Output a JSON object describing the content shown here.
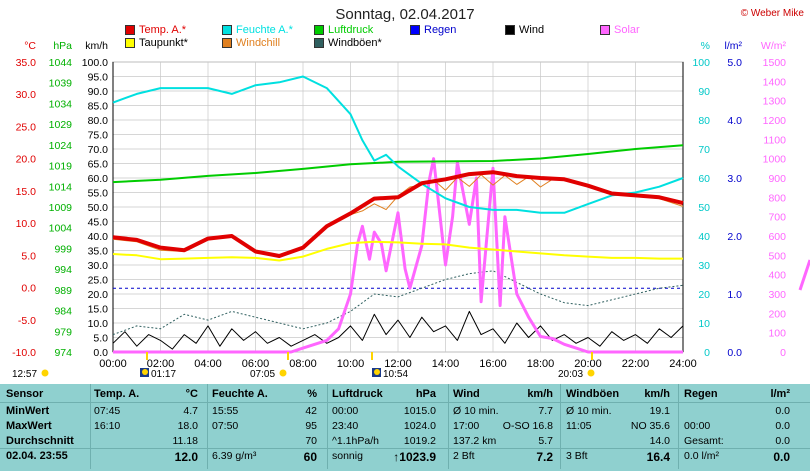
{
  "title": "Sonntag, 02.04.2017",
  "credit": "© Weber Mike",
  "legend": [
    {
      "label": "Temp. A.*",
      "color": "#e00000"
    },
    {
      "label": "Feuchte A.*",
      "color": "#00e0e0"
    },
    {
      "label": "Luftdruck",
      "color": "#00cc00"
    },
    {
      "label": "Regen",
      "color": "#0000ff"
    },
    {
      "label": "Wind",
      "color": "#000000"
    },
    {
      "label": "Solar",
      "color": "#ff66ff"
    },
    {
      "label": "Taupunkt*",
      "color": "#ffff00"
    },
    {
      "label": "Windchill",
      "color": "#e08020"
    },
    {
      "label": "Windböen*",
      "color": "#306060"
    }
  ],
  "units": {
    "temp": "°C",
    "press": "hPa",
    "wind": "km/h",
    "hum": "%",
    "rain": "l/m²",
    "solar": "W/m²"
  },
  "chart_data": {
    "type": "line",
    "x_ticks": [
      "00:00",
      "02:00",
      "04:00",
      "06:00",
      "08:00",
      "10:00",
      "12:00",
      "14:00",
      "16:00",
      "18:00",
      "20:00",
      "22:00",
      "24:00"
    ],
    "axes": {
      "temp": {
        "label": "°C",
        "ticks": [
          "35.0",
          "30.0",
          "25.0",
          "20.0",
          "15.0",
          "10.0",
          "5.0",
          "0.0",
          "-5.0",
          "-10.0"
        ],
        "range": [
          -10,
          35
        ]
      },
      "press": {
        "label": "hPa",
        "ticks": [
          "1044",
          "1039",
          "1034",
          "1029",
          "1024",
          "1019",
          "1014",
          "1009",
          "1004",
          "999",
          "994",
          "989",
          "984",
          "979",
          "974"
        ],
        "range": [
          974,
          1044
        ]
      },
      "wind": {
        "label": "km/h",
        "ticks": [
          "100.0",
          "95.0",
          "90.0",
          "85.0",
          "80.0",
          "75.0",
          "70.0",
          "65.0",
          "60.0",
          "55.0",
          "50.0",
          "45.0",
          "40.0",
          "35.0",
          "30.0",
          "25.0",
          "20.0",
          "15.0",
          "10.0",
          "5.0",
          "0.0"
        ],
        "range": [
          0,
          100
        ]
      },
      "hum": {
        "label": "%",
        "ticks": [
          "100",
          "90",
          "80",
          "70",
          "60",
          "50",
          "40",
          "30",
          "20",
          "10",
          "0"
        ],
        "range": [
          0,
          100
        ]
      },
      "rain": {
        "label": "l/m²",
        "ticks": [
          "5.0",
          "4.0",
          "3.0",
          "2.0",
          "1.0",
          "0.0"
        ],
        "range": [
          0,
          5
        ]
      },
      "solar": {
        "label": "W/m²",
        "ticks": [
          "1500",
          "1400",
          "1300",
          "1200",
          "1100",
          "1000",
          "900",
          "800",
          "700",
          "600",
          "500",
          "400",
          "300",
          "200",
          "100",
          "0"
        ],
        "range": [
          0,
          1500
        ]
      }
    },
    "series": [
      {
        "name": "Temp. A.*",
        "axis": "temp",
        "color": "#e00000",
        "width": 4,
        "x": [
          0,
          1,
          2,
          3,
          4,
          5,
          6,
          7,
          8,
          9,
          10,
          11,
          12,
          13,
          14,
          15,
          16,
          17,
          18,
          19,
          20,
          21,
          22,
          23,
          24
        ],
        "y": [
          7.8,
          7.4,
          6.2,
          5.8,
          7.6,
          8.0,
          5.6,
          4.9,
          6.2,
          9.5,
          11.5,
          13.8,
          14.0,
          16.2,
          16.8,
          17.6,
          17.9,
          17.3,
          17.0,
          16.8,
          15.8,
          14.6,
          14.3,
          14.0,
          13.1
        ]
      },
      {
        "name": "Taupunkt*",
        "axis": "temp",
        "color": "#ffff00",
        "width": 2,
        "x": [
          0,
          1,
          2,
          3,
          4,
          5,
          6,
          7,
          8,
          9,
          10,
          11,
          12,
          13,
          14,
          15,
          16,
          17,
          18,
          19,
          20,
          21,
          22,
          23,
          24
        ],
        "y": [
          5.2,
          5.0,
          4.4,
          4.5,
          4.6,
          4.7,
          4.6,
          4.2,
          4.8,
          6.0,
          6.9,
          7.1,
          7.0,
          6.8,
          6.7,
          6.2,
          5.9,
          5.6,
          5.3,
          5.0,
          4.8,
          4.6,
          4.6,
          4.5,
          4.5
        ]
      },
      {
        "name": "Windchill",
        "axis": "temp",
        "color": "#e08020",
        "width": 1,
        "x": [
          0,
          1,
          2,
          3,
          4,
          5,
          6,
          7,
          8,
          9,
          10,
          10.5,
          11,
          11.5,
          12,
          12.5,
          13,
          13.5,
          14,
          14.5,
          15,
          15.5,
          16,
          16.5,
          17,
          17.5,
          18,
          18.5,
          19,
          20,
          21,
          22,
          23,
          24
        ],
        "y": [
          7.5,
          7.1,
          5.8,
          5.6,
          7.4,
          7.9,
          5.5,
          4.9,
          6.1,
          9.4,
          11.3,
          11.9,
          13.0,
          12.1,
          14.2,
          15.6,
          15.9,
          16.7,
          15.1,
          17.1,
          15.7,
          17.5,
          15.9,
          17.4,
          16.0,
          17.2,
          15.6,
          16.8,
          16.7,
          15.7,
          14.5,
          14.2,
          13.8,
          12.6
        ]
      },
      {
        "name": "Feuchte A.*",
        "axis": "hum",
        "color": "#00e0e0",
        "width": 2,
        "x": [
          0,
          1,
          2,
          3,
          4,
          5,
          6,
          7,
          8,
          9,
          10,
          10.5,
          11,
          11.5,
          12,
          13,
          14,
          15,
          16,
          17,
          18,
          19,
          20,
          21,
          22,
          23,
          24
        ],
        "y": [
          86,
          89,
          91,
          91,
          91,
          89,
          92,
          93,
          95,
          91,
          82,
          73,
          66,
          68,
          64,
          58,
          53,
          50,
          49,
          49,
          48,
          48,
          51,
          54,
          55,
          57,
          60
        ]
      },
      {
        "name": "Luftdruck",
        "axis": "press",
        "color": "#00cc00",
        "width": 2,
        "x": [
          0,
          2,
          4,
          6,
          8,
          10,
          12,
          14,
          16,
          18,
          20,
          22,
          24
        ],
        "y": [
          1015.0,
          1015.6,
          1016.5,
          1017.2,
          1018.2,
          1019.3,
          1019.9,
          1020.0,
          1020.1,
          1020.7,
          1021.8,
          1023.0,
          1023.9
        ]
      },
      {
        "name": "Solar",
        "axis": "solar",
        "color": "#ff66ff",
        "width": 3,
        "x": [
          0,
          7.5,
          8,
          9,
          9.5,
          10,
          10.3,
          10.5,
          10.8,
          11,
          11.3,
          11.5,
          12,
          12.3,
          12.5,
          13,
          13.3,
          13.5,
          14,
          14.3,
          14.5,
          15,
          15.3,
          15.5,
          16,
          16.3,
          16.5,
          17,
          17.5,
          18,
          18.5,
          19,
          19.5,
          20,
          24
        ],
        "y": [
          0,
          0,
          20,
          60,
          120,
          300,
          560,
          650,
          480,
          620,
          560,
          420,
          720,
          430,
          330,
          550,
          880,
          1000,
          450,
          700,
          980,
          660,
          900,
          260,
          950,
          240,
          700,
          300,
          180,
          80,
          70,
          40,
          20,
          0,
          0
        ]
      },
      {
        "name": "Wind",
        "axis": "wind",
        "color": "#000000",
        "width": 1,
        "x": [
          0,
          0.5,
          1,
          1.5,
          2,
          2.5,
          3,
          3.5,
          4,
          4.5,
          5,
          5.5,
          6,
          6.5,
          7,
          7.5,
          8,
          8.5,
          9,
          9.5,
          10,
          10.5,
          11,
          11.5,
          12,
          12.5,
          13,
          13.5,
          14,
          14.5,
          15,
          15.5,
          16,
          16.5,
          17,
          17.5,
          18,
          18.5,
          19,
          19.5,
          20,
          20.5,
          21,
          21.5,
          22,
          22.5,
          23,
          23.5,
          24
        ],
        "y": [
          3,
          7,
          2,
          6,
          4,
          1,
          6,
          3,
          9,
          2,
          8,
          4,
          7,
          3,
          5,
          2,
          4,
          6,
          3,
          5,
          9,
          4,
          13,
          6,
          11,
          5,
          12,
          7,
          9,
          4,
          14,
          6,
          8,
          3,
          10,
          5,
          9,
          4,
          6,
          3,
          5,
          2,
          7,
          4,
          6,
          3,
          8,
          5,
          9
        ]
      },
      {
        "name": "Windböen*",
        "axis": "wind",
        "color": "#306060",
        "width": 1,
        "dash": "2,2",
        "x": [
          0,
          1,
          2,
          3,
          4,
          5,
          6,
          7,
          8,
          9,
          10,
          11,
          12,
          13,
          14,
          15,
          16,
          17,
          18,
          19,
          20,
          21,
          22,
          23,
          24
        ],
        "y": [
          6,
          9,
          8,
          13,
          11,
          14,
          12,
          10,
          8,
          10,
          14,
          20,
          19,
          22,
          25,
          27,
          28,
          24,
          20,
          17,
          16,
          18,
          20,
          22,
          23
        ]
      }
    ],
    "rain_dashed_line": 1.1
  },
  "markers": [
    {
      "text": "12:57",
      "icon": "sunrise"
    },
    {
      "text": "01:17",
      "icon": "moon"
    },
    {
      "text": "07:05",
      "icon": "sun"
    },
    {
      "text": "10:54",
      "icon": "moon"
    },
    {
      "text": "20:03",
      "icon": "sunset"
    }
  ],
  "table": {
    "row_labels": [
      "Sensor",
      "MinWert",
      "MaxWert",
      "Durchschnitt",
      "02.04.  23:55"
    ],
    "temp": {
      "head1": "Temp. A.",
      "head2": "°C",
      "rows": [
        [
          "07:45",
          "4.7"
        ],
        [
          "16:10",
          "18.0"
        ],
        [
          "",
          "11.18"
        ],
        [
          "",
          "12.0"
        ]
      ]
    },
    "hum": {
      "head1": "Feuchte A.",
      "head2": "%",
      "rows": [
        [
          "15:55",
          "42"
        ],
        [
          "07:50",
          "95"
        ],
        [
          "",
          "70"
        ],
        [
          "6.39 g/m³",
          "60"
        ]
      ]
    },
    "press": {
      "head1": "Luftdruck",
      "head2": "hPa",
      "rows": [
        [
          "00:00",
          "1015.0"
        ],
        [
          "23:40",
          "1024.0"
        ],
        [
          "^1.1hPa/h",
          "1019.2"
        ],
        [
          "sonnig",
          "↑1023.9"
        ]
      ]
    },
    "wind": {
      "head1": "Wind",
      "head2": "km/h",
      "rows": [
        [
          "Ø 10 min.",
          "7.7"
        ],
        [
          "17:00",
          "O-SO 16.8"
        ],
        [
          "137.2 km",
          "5.7"
        ],
        [
          "2 Bft",
          "7.2"
        ]
      ]
    },
    "gust": {
      "head1": "Windböen",
      "head2": "km/h",
      "rows": [
        [
          "Ø 10 min.",
          "19.1"
        ],
        [
          "11:05",
          "NO 35.6"
        ],
        [
          "",
          "14.0"
        ],
        [
          "3 Bft",
          "16.4"
        ]
      ]
    },
    "rain": {
      "head1": "Regen",
      "head2": "l/m²",
      "rows": [
        [
          "",
          "0.0"
        ],
        [
          "00:00",
          "0.0"
        ],
        [
          "Gesamt:",
          "0.0"
        ],
        [
          "0.0 l/m²",
          "0.0"
        ]
      ]
    }
  }
}
